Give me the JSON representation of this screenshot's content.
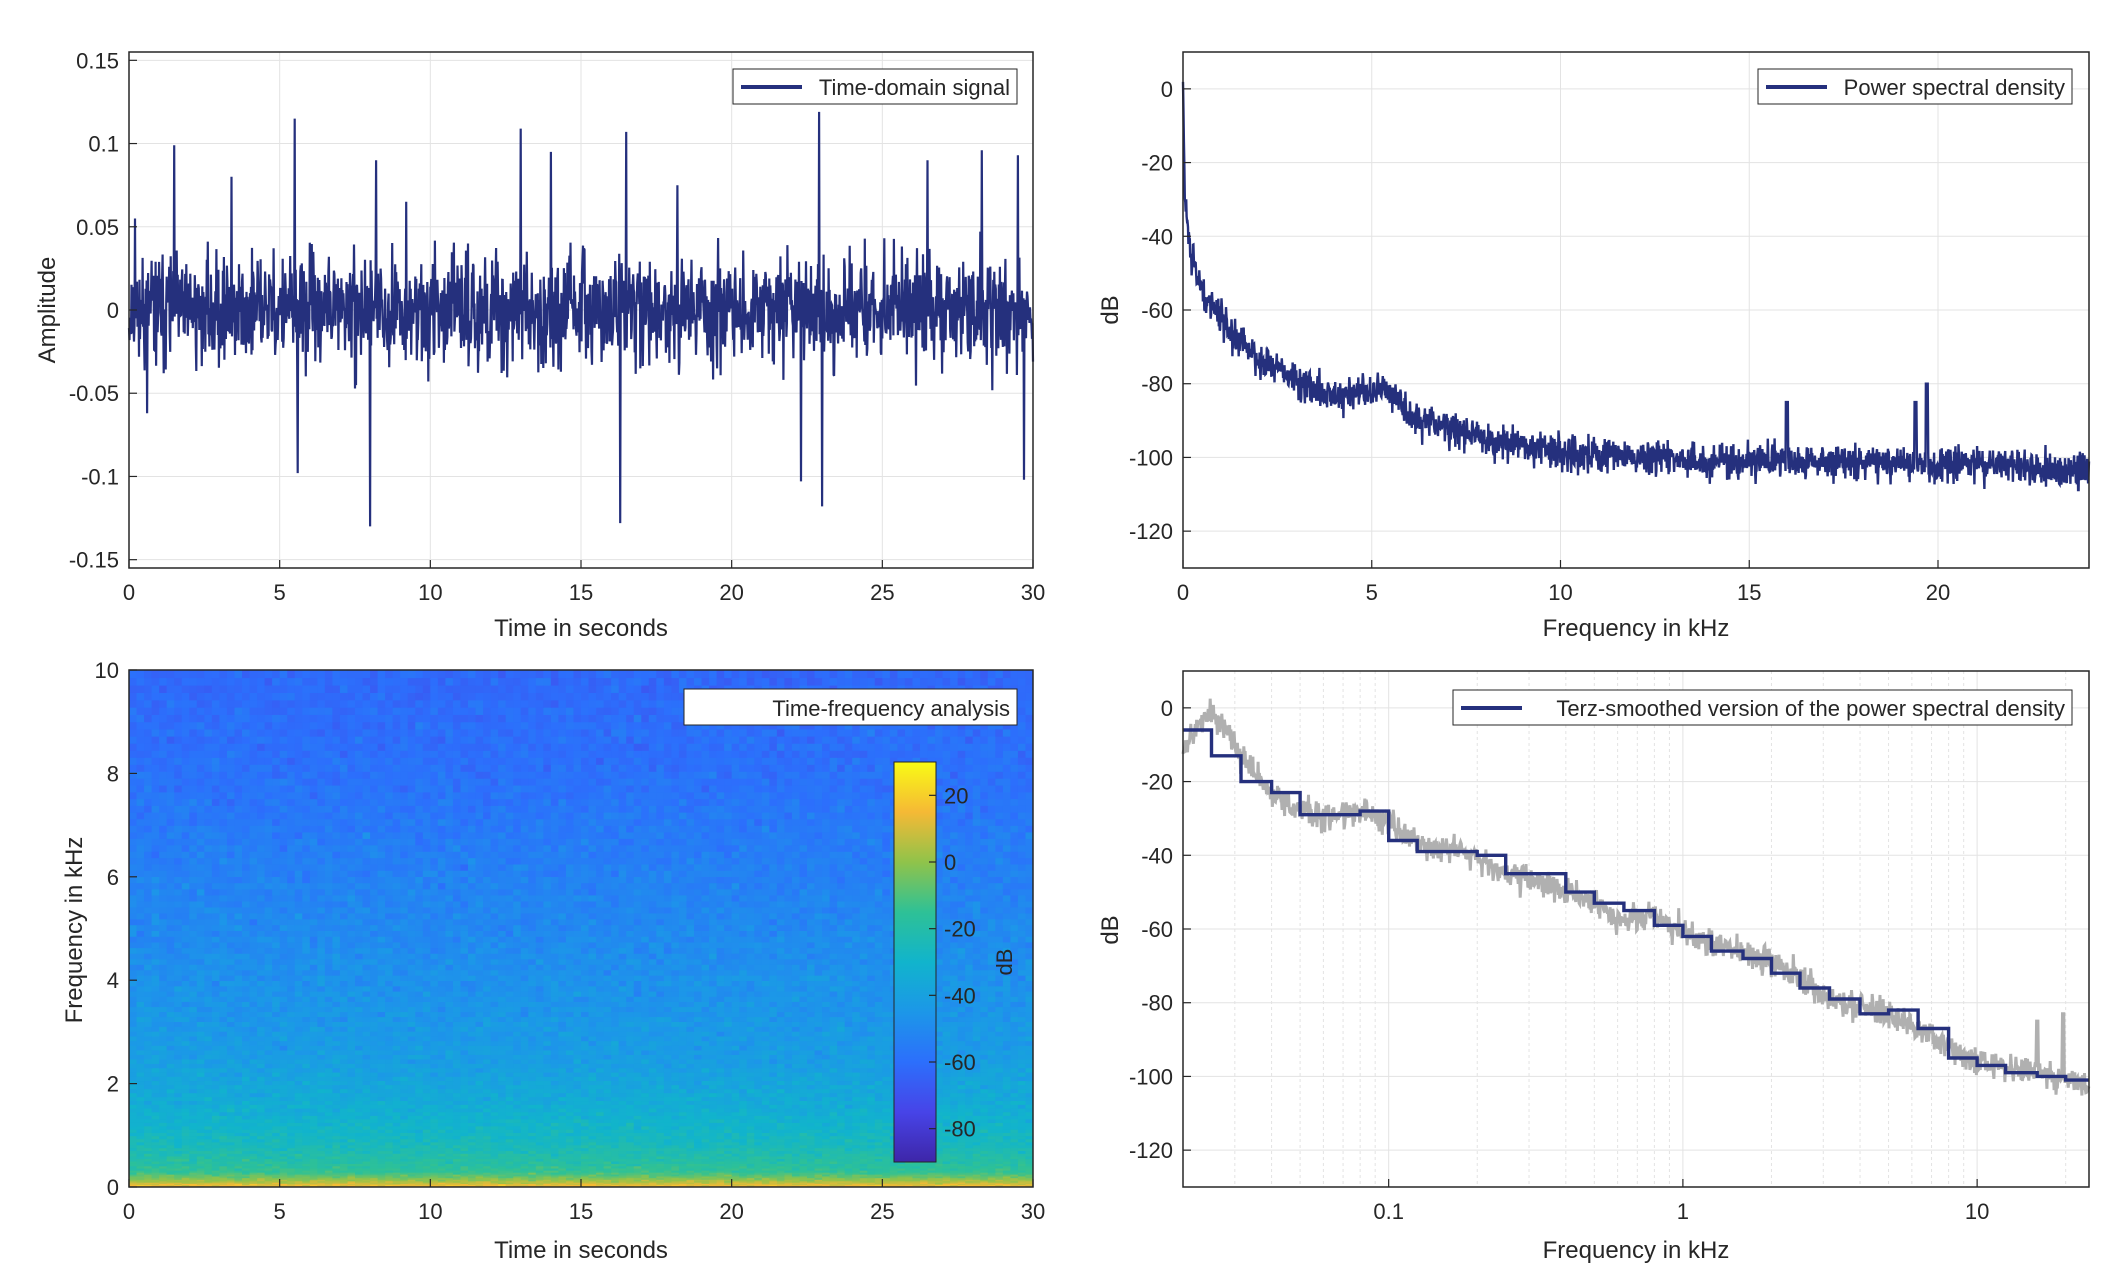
{
  "chart_data": [
    {
      "type": "line",
      "legend": "Time-domain signal",
      "legend_position": "top-right",
      "xlabel": "Time in seconds",
      "ylabel": "Amplitude",
      "xlim": [
        0,
        30
      ],
      "ylim": [
        -0.155,
        0.155
      ],
      "xticks": [
        0,
        5,
        10,
        15,
        20,
        25,
        30
      ],
      "xticklabels": [
        "0",
        "5",
        "10",
        "15",
        "20",
        "25",
        "30"
      ],
      "yticks": [
        -0.15,
        -0.1,
        -0.05,
        0,
        0.05,
        0.1,
        0.15
      ],
      "yticklabels": [
        "-0.15",
        "-0.1",
        "-0.05",
        "0",
        "0.05",
        "0.1",
        "0.15"
      ],
      "grid": true,
      "color": "#25307d",
      "notable_peaks": [
        {
          "t": 0.2,
          "v": 0.055
        },
        {
          "t": 0.6,
          "v": -0.062
        },
        {
          "t": 1.5,
          "v": 0.099
        },
        {
          "t": 3.4,
          "v": 0.08
        },
        {
          "t": 5.5,
          "v": 0.115
        },
        {
          "t": 5.6,
          "v": -0.098
        },
        {
          "t": 8.0,
          "v": -0.13
        },
        {
          "t": 8.2,
          "v": 0.09
        },
        {
          "t": 9.2,
          "v": 0.065
        },
        {
          "t": 13.0,
          "v": 0.109
        },
        {
          "t": 14.0,
          "v": 0.095
        },
        {
          "t": 16.3,
          "v": -0.128
        },
        {
          "t": 16.5,
          "v": 0.107
        },
        {
          "t": 18.2,
          "v": 0.075
        },
        {
          "t": 22.3,
          "v": -0.103
        },
        {
          "t": 22.9,
          "v": 0.119
        },
        {
          "t": 23.0,
          "v": -0.118
        },
        {
          "t": 26.5,
          "v": 0.09
        },
        {
          "t": 28.3,
          "v": 0.096
        },
        {
          "t": 29.5,
          "v": 0.093
        },
        {
          "t": 29.7,
          "v": -0.102
        }
      ]
    },
    {
      "type": "line",
      "legend": "Power spectral density",
      "legend_position": "top-right",
      "xlabel": "Frequency in kHz",
      "ylabel": "dB",
      "xlim": [
        0,
        24
      ],
      "ylim": [
        -130,
        10
      ],
      "xticks": [
        0,
        5,
        10,
        15,
        20
      ],
      "xticklabels": [
        "0",
        "5",
        "10",
        "15",
        "20"
      ],
      "yticks": [
        -120,
        -100,
        -80,
        -60,
        -40,
        -20,
        0
      ],
      "yticklabels": [
        "-120",
        "-100",
        "-80",
        "-60",
        "-40",
        "-20",
        "0"
      ],
      "grid": true,
      "color": "#25307d",
      "x": [
        0,
        0.05,
        0.2,
        0.5,
        1,
        1.5,
        2,
        3,
        4,
        5,
        5.5,
        6,
        7,
        8,
        10,
        12,
        14,
        16,
        18,
        20,
        22,
        24
      ],
      "y": [
        0,
        -30,
        -45,
        -55,
        -62,
        -68,
        -73,
        -79,
        -84,
        -82,
        -82,
        -88,
        -92,
        -95,
        -99,
        -100,
        -101,
        -101,
        -101,
        -102,
        -102,
        -104
      ],
      "spikes": [
        {
          "x": 16.0,
          "y": -85
        },
        {
          "x": 19.4,
          "y": -85
        },
        {
          "x": 19.7,
          "y": -80
        }
      ]
    },
    {
      "type": "heatmap",
      "legend": "Time-frequency analysis",
      "legend_position": "top-right",
      "xlabel": "Time in seconds",
      "ylabel": "Frequency in kHz",
      "xlim": [
        0,
        30
      ],
      "ylim": [
        0,
        10
      ],
      "xticks": [
        0,
        5,
        10,
        15,
        20,
        25,
        30
      ],
      "xticklabels": [
        "0",
        "5",
        "10",
        "15",
        "20",
        "25",
        "30"
      ],
      "yticks": [
        0,
        2,
        4,
        6,
        8,
        10
      ],
      "yticklabels": [
        "0",
        "2",
        "4",
        "6",
        "8",
        "10"
      ],
      "colorbar": {
        "label": "dB",
        "range": [
          -90,
          30
        ],
        "ticks": [
          -80,
          -60,
          -40,
          -20,
          0,
          20
        ],
        "ticklabels": [
          "-80",
          "-60",
          "-40",
          "-20",
          "0",
          "20"
        ],
        "colormap": "parula"
      },
      "level_profile_db": [
        {
          "f": 0.0,
          "db": 20
        },
        {
          "f": 0.1,
          "db": 5
        },
        {
          "f": 0.3,
          "db": -15
        },
        {
          "f": 0.8,
          "db": -25
        },
        {
          "f": 1.5,
          "db": -33
        },
        {
          "f": 2.5,
          "db": -42
        },
        {
          "f": 4,
          "db": -47
        },
        {
          "f": 6,
          "db": -53
        },
        {
          "f": 8,
          "db": -59
        },
        {
          "f": 10,
          "db": -62
        }
      ]
    },
    {
      "type": "line",
      "legend": "Terz-smoothed version of the power spectral density",
      "legend_position": "top-right",
      "xlabel": "Frequency in kHz",
      "ylabel": "dB",
      "xscale": "log",
      "xlim": [
        0.02,
        24
      ],
      "ylim": [
        -130,
        10
      ],
      "xticks": [
        0.1,
        1,
        10
      ],
      "xticklabels": [
        "0.1",
        "1",
        "10"
      ],
      "yticks": [
        -120,
        -100,
        -80,
        -60,
        -40,
        -20,
        0
      ],
      "yticklabels": [
        "-120",
        "-100",
        "-80",
        "-60",
        "-40",
        "-20",
        "0"
      ],
      "grid": true,
      "series": [
        {
          "name": "Terz-smoothed version of the power spectral density",
          "color": "#25307d",
          "steps": [
            {
              "x": [
                0.02,
                0.025
              ],
              "y": -6
            },
            {
              "x": [
                0.025,
                0.0315
              ],
              "y": -13
            },
            {
              "x": [
                0.0315,
                0.04
              ],
              "y": -20
            },
            {
              "x": [
                0.04,
                0.05
              ],
              "y": -23
            },
            {
              "x": [
                0.05,
                0.063
              ],
              "y": -29
            },
            {
              "x": [
                0.063,
                0.08
              ],
              "y": -29
            },
            {
              "x": [
                0.08,
                0.1
              ],
              "y": -28
            },
            {
              "x": [
                0.1,
                0.125
              ],
              "y": -36
            },
            {
              "x": [
                0.125,
                0.16
              ],
              "y": -39
            },
            {
              "x": [
                0.16,
                0.2
              ],
              "y": -39
            },
            {
              "x": [
                0.2,
                0.25
              ],
              "y": -40
            },
            {
              "x": [
                0.25,
                0.315
              ],
              "y": -45
            },
            {
              "x": [
                0.315,
                0.4
              ],
              "y": -45
            },
            {
              "x": [
                0.4,
                0.5
              ],
              "y": -50
            },
            {
              "x": [
                0.5,
                0.63
              ],
              "y": -53
            },
            {
              "x": [
                0.63,
                0.8
              ],
              "y": -55
            },
            {
              "x": [
                0.8,
                1.0
              ],
              "y": -59
            },
            {
              "x": [
                1.0,
                1.25
              ],
              "y": -62
            },
            {
              "x": [
                1.25,
                1.6
              ],
              "y": -66
            },
            {
              "x": [
                1.6,
                2.0
              ],
              "y": -68
            },
            {
              "x": [
                2.0,
                2.5
              ],
              "y": -72
            },
            {
              "x": [
                2.5,
                3.15
              ],
              "y": -76
            },
            {
              "x": [
                3.15,
                4.0
              ],
              "y": -79
            },
            {
              "x": [
                4.0,
                5.0
              ],
              "y": -83
            },
            {
              "x": [
                5.0,
                6.3
              ],
              "y": -82
            },
            {
              "x": [
                6.3,
                8.0
              ],
              "y": -87
            },
            {
              "x": [
                8.0,
                10
              ],
              "y": -95
            },
            {
              "x": [
                10,
                12.5
              ],
              "y": -97
            },
            {
              "x": [
                12.5,
                16
              ],
              "y": -99
            },
            {
              "x": [
                16,
                20
              ],
              "y": -100
            },
            {
              "x": [
                20,
                24
              ],
              "y": -101
            }
          ]
        },
        {
          "color": "#b0b0b0",
          "description_free": true,
          "x": [
            0.02,
            0.025,
            0.03,
            0.035,
            0.04,
            0.05,
            0.06,
            0.08,
            0.1,
            0.13,
            0.16,
            0.2,
            0.25,
            0.3,
            0.4,
            0.5,
            0.6,
            0.8,
            1,
            1.3,
            1.6,
            2,
            2.5,
            3,
            4,
            5,
            6,
            8,
            10,
            13,
            16,
            20,
            24
          ],
          "y": [
            -10,
            -1,
            -10,
            -17,
            -24,
            -27,
            -30,
            -28,
            -31,
            -37,
            -38,
            -40,
            -45,
            -46,
            -50,
            -53,
            -57,
            -56,
            -61,
            -64,
            -67,
            -69,
            -73,
            -78,
            -81,
            -83,
            -86,
            -92,
            -96,
            -98,
            -99,
            -101,
            -103
          ]
        }
      ]
    }
  ]
}
